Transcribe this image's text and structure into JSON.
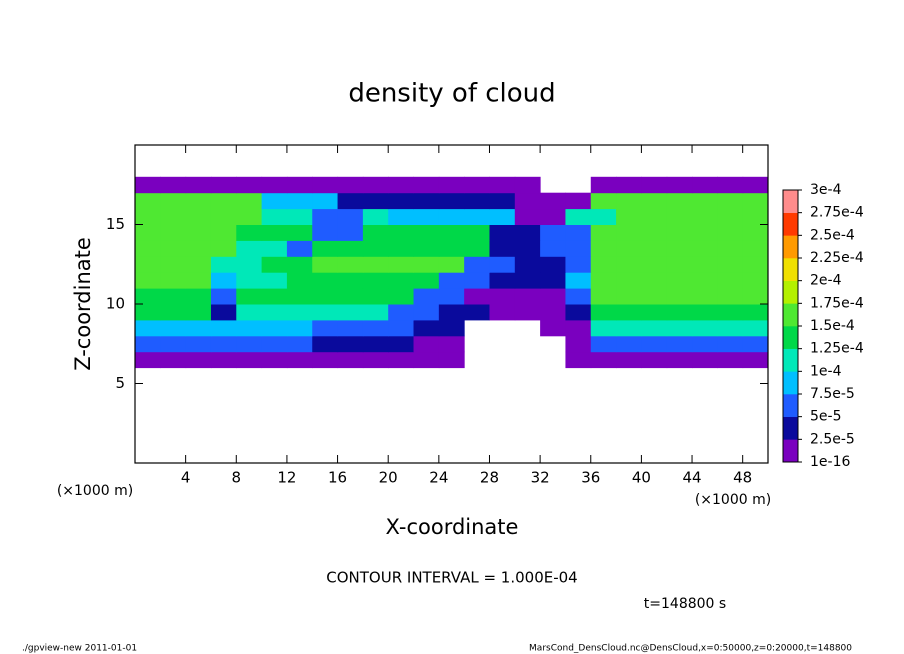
{
  "chart_data": {
    "type": "heatmap",
    "title": "density of cloud",
    "xlabel": "X-coordinate",
    "ylabel": "Z-coordinate",
    "xunit": "(×1000 m)",
    "note": "CONTOUR INTERVAL = 1.000E-04",
    "time": "t=148800 s",
    "footer_left": "./gpview-new  2011-01-01",
    "footer_right": "MarsCond_DensCloud.nc@DensCloud,x=0:50000,z=0:20000,t=148800",
    "xlim": [
      0,
      50
    ],
    "ylim": [
      0,
      20
    ],
    "xticks": [
      4,
      8,
      12,
      16,
      20,
      24,
      28,
      32,
      36,
      40,
      44,
      48
    ],
    "yticks": [
      5,
      10,
      15
    ],
    "xbins": [
      0,
      2,
      4,
      6,
      8,
      10,
      12,
      14,
      16,
      18,
      20,
      22,
      24,
      26,
      28,
      30,
      32,
      34,
      36,
      38,
      40,
      42,
      44,
      46,
      48,
      50
    ],
    "ybins": [
      6,
      7,
      8,
      9,
      10,
      11,
      12,
      13,
      14,
      15,
      16,
      17,
      18
    ],
    "z": [
      [
        2e-05,
        2e-05,
        2e-05,
        2e-05,
        2e-05,
        2e-05,
        2e-05,
        2e-05,
        2e-05,
        2e-05,
        2e-05,
        1e-05,
        1e-05,
        null,
        null,
        null,
        null,
        1e-05,
        2e-05,
        2e-05,
        2e-05,
        2e-05,
        2e-05,
        2e-05,
        2e-05
      ],
      [
        5e-05,
        5e-05,
        5e-05,
        5e-05,
        5e-05,
        5e-05,
        5e-05,
        4e-05,
        4e-05,
        4e-05,
        4e-05,
        2e-05,
        2e-05,
        null,
        null,
        null,
        null,
        1e-05,
        5e-05,
        5e-05,
        5e-05,
        5e-05,
        5e-05,
        5e-05,
        5e-05
      ],
      [
        9e-05,
        9e-05,
        9e-05,
        9e-05,
        9e-05,
        9e-05,
        9e-05,
        6e-05,
        6e-05,
        6e-05,
        6e-05,
        3e-05,
        3e-05,
        null,
        null,
        null,
        2e-05,
        2e-05,
        0.0001,
        0.0001,
        0.0001,
        0.0001,
        0.0001,
        0.0001,
        0.0001
      ],
      [
        0.00013,
        0.00013,
        0.00013,
        4e-05,
        0.00012,
        0.00012,
        0.00012,
        0.00012,
        0.00012,
        0.00012,
        5e-05,
        5e-05,
        3e-05,
        3e-05,
        1e-05,
        1e-05,
        1e-05,
        4e-05,
        0.00014,
        0.00014,
        0.00014,
        0.00014,
        0.00014,
        0.00014,
        0.00014
      ],
      [
        0.00014,
        0.00014,
        0.00014,
        6e-05,
        0.00013,
        0.00013,
        0.00013,
        0.00013,
        0.00013,
        0.00013,
        0.00013,
        6e-05,
        6e-05,
        2e-05,
        2e-05,
        2e-05,
        2e-05,
        7e-05,
        0.00015,
        0.00015,
        0.00015,
        0.00015,
        0.00015,
        0.00015,
        0.00015
      ],
      [
        0.00015,
        0.00015,
        0.00015,
        9e-05,
        0.00012,
        0.00012,
        0.00014,
        0.00014,
        0.00014,
        0.00014,
        0.00014,
        0.00014,
        6e-05,
        6e-05,
        3e-05,
        3e-05,
        3e-05,
        8e-05,
        0.00016,
        0.00016,
        0.00016,
        0.00016,
        0.00016,
        0.00016,
        0.00016
      ],
      [
        0.00016,
        0.00016,
        0.00016,
        0.0001,
        0.0001,
        0.00013,
        0.00013,
        0.00015,
        0.00015,
        0.00015,
        0.00015,
        0.00015,
        0.00015,
        5e-05,
        5e-05,
        3e-05,
        3e-05,
        6e-05,
        0.00016,
        0.00016,
        0.00016,
        0.00016,
        0.00016,
        0.00016,
        0.00016
      ],
      [
        0.00016,
        0.00016,
        0.00016,
        0.00016,
        0.00012,
        0.00012,
        6e-05,
        0.00014,
        0.00014,
        0.00014,
        0.00014,
        0.00014,
        0.00014,
        0.00014,
        4e-05,
        4e-05,
        6e-05,
        6e-05,
        0.00016,
        0.00016,
        0.00016,
        0.00016,
        0.00016,
        0.00016,
        0.00016
      ],
      [
        0.00016,
        0.00016,
        0.00016,
        0.00016,
        0.00013,
        0.00013,
        0.00013,
        6e-05,
        6e-05,
        0.00013,
        0.00013,
        0.00013,
        0.00013,
        0.00013,
        3e-05,
        3e-05,
        5e-05,
        5e-05,
        0.00016,
        0.00016,
        0.00016,
        0.00016,
        0.00016,
        0.00016,
        0.00016
      ],
      [
        0.00016,
        0.00016,
        0.00016,
        0.00016,
        0.00016,
        0.00012,
        0.00012,
        5e-05,
        5e-05,
        0.0001,
        8e-05,
        8e-05,
        8e-05,
        8e-05,
        8e-05,
        2e-05,
        2e-05,
        0.0001,
        0.0001,
        0.00016,
        0.00016,
        0.00016,
        0.00016,
        0.00016,
        0.00016
      ],
      [
        0.00016,
        0.00016,
        0.00016,
        0.00016,
        0.00016,
        9e-05,
        9e-05,
        9e-05,
        3e-05,
        3e-05,
        4e-05,
        4e-05,
        4e-05,
        4e-05,
        4e-05,
        1e-05,
        1e-05,
        1e-05,
        0.00015,
        0.00015,
        0.00015,
        0.00015,
        0.00015,
        0.00015,
        0.00015
      ],
      [
        1e-05,
        1e-05,
        1e-05,
        1e-05,
        1e-05,
        1e-05,
        1e-05,
        1e-05,
        1e-05,
        1e-05,
        1e-05,
        1e-05,
        1e-05,
        1e-05,
        1e-05,
        1e-05,
        null,
        null,
        1e-05,
        1e-05,
        1e-05,
        1e-05,
        1e-05,
        1e-05,
        1e-05
      ]
    ],
    "levels": [
      {
        "value": 1e-16,
        "label": "1e-16"
      },
      {
        "value": 2.5e-05,
        "label": "2.5e-5"
      },
      {
        "value": 5e-05,
        "label": "5e-5"
      },
      {
        "value": 7.5e-05,
        "label": "7.5e-5"
      },
      {
        "value": 0.0001,
        "label": "1e-4"
      },
      {
        "value": 0.000125,
        "label": "1.25e-4"
      },
      {
        "value": 0.00015,
        "label": "1.5e-4"
      },
      {
        "value": 0.000175,
        "label": "1.75e-4"
      },
      {
        "value": 0.0002,
        "label": "2e-4"
      },
      {
        "value": 0.000225,
        "label": "2.25e-4"
      },
      {
        "value": 0.00025,
        "label": "2.5e-4"
      },
      {
        "value": 0.000275,
        "label": "2.75e-4"
      },
      {
        "value": 0.0003,
        "label": "3e-4"
      }
    ],
    "colors": [
      "#7a00bf",
      "#0a0a9c",
      "#1f5cff",
      "#00bfff",
      "#00e8b8",
      "#00d848",
      "#4fe832",
      "#b4f000",
      "#f0e000",
      "#ff9a00",
      "#ff3a00",
      "#ff8c8c"
    ]
  }
}
